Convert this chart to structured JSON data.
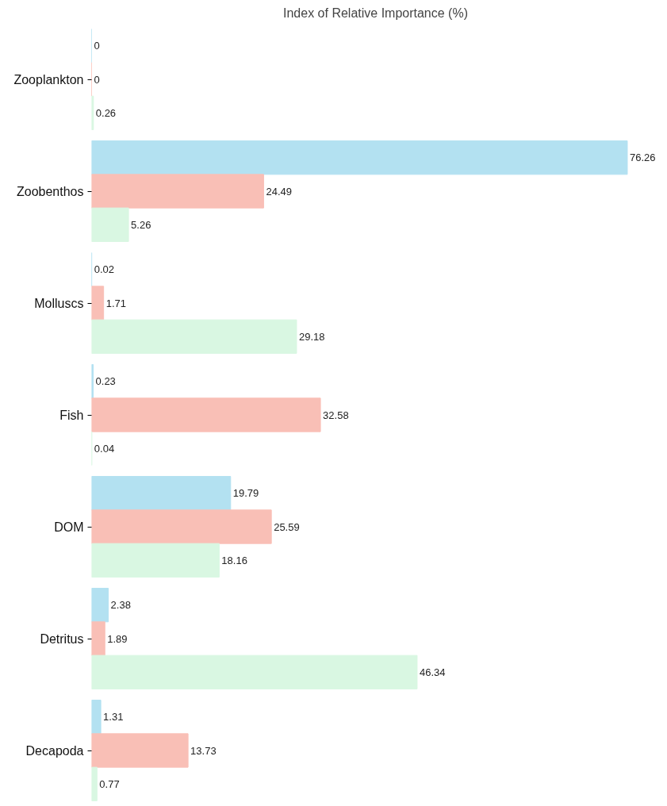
{
  "chart_data": {
    "type": "bar",
    "orientation": "horizontal",
    "title": "Index of Relative Importance (%)",
    "categories": [
      "Zooplankton",
      "Zoobenthos",
      "Molluscs",
      "Fish",
      "DOM",
      "Detritus",
      "Decapoda"
    ],
    "series": [
      {
        "color": "#b3e1f1",
        "values": [
          0,
          76.26,
          0.02,
          0.23,
          19.79,
          2.38,
          1.31
        ]
      },
      {
        "color": "#f9bfb6",
        "values": [
          0,
          24.49,
          1.71,
          32.58,
          25.59,
          1.89,
          13.73
        ]
      },
      {
        "color": "#d9f7e2",
        "values": [
          0.26,
          5.26,
          29.18,
          0.04,
          18.16,
          46.34,
          0.77
        ]
      }
    ],
    "data_labels": true,
    "grid": false
  }
}
